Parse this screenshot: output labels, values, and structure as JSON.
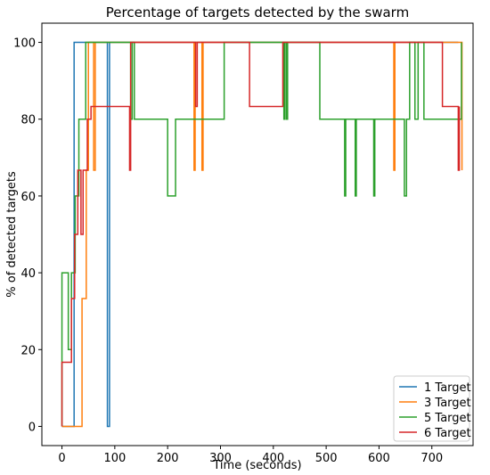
{
  "chart_data": {
    "type": "line",
    "title": "Percentage of targets detected by the swarm",
    "xlabel": "Time (seconds)",
    "ylabel": "% of detected targets",
    "xlim": [
      -38,
      778
    ],
    "ylim": [
      -5,
      105
    ],
    "x_ticks": [
      0,
      100,
      200,
      300,
      400,
      500,
      600,
      700
    ],
    "y_ticks": [
      0,
      20,
      40,
      60,
      80,
      100
    ],
    "grid": false,
    "legend_position": "bottom-right",
    "series": [
      {
        "name": "1 Target",
        "color": "#1f77b4",
        "points": [
          [
            0,
            0
          ],
          [
            23,
            0
          ],
          [
            23,
            100
          ],
          [
            86,
            100
          ],
          [
            86,
            0
          ],
          [
            90,
            0
          ],
          [
            90,
            100
          ],
          [
            750,
            100
          ]
        ]
      },
      {
        "name": "3 Target",
        "color": "#ff7f0e",
        "points": [
          [
            0,
            0
          ],
          [
            38,
            0
          ],
          [
            38,
            33.3
          ],
          [
            46,
            33.3
          ],
          [
            46,
            66.7
          ],
          [
            50,
            66.7
          ],
          [
            50,
            100
          ],
          [
            60,
            100
          ],
          [
            60,
            66.7
          ],
          [
            63,
            66.7
          ],
          [
            63,
            100
          ],
          [
            250,
            100
          ],
          [
            250,
            66.7
          ],
          [
            252,
            66.7
          ],
          [
            252,
            100
          ],
          [
            265,
            100
          ],
          [
            265,
            66.7
          ],
          [
            267,
            66.7
          ],
          [
            267,
            100
          ],
          [
            628,
            100
          ],
          [
            628,
            66.7
          ],
          [
            630,
            66.7
          ],
          [
            630,
            100
          ],
          [
            757,
            100
          ],
          [
            757,
            66.7
          ]
        ]
      },
      {
        "name": "5 Target",
        "color": "#2ca02c",
        "points": [
          [
            0,
            0
          ],
          [
            0,
            40
          ],
          [
            12,
            40
          ],
          [
            12,
            20
          ],
          [
            18,
            20
          ],
          [
            18,
            40
          ],
          [
            25,
            40
          ],
          [
            25,
            60
          ],
          [
            32,
            60
          ],
          [
            32,
            80
          ],
          [
            45,
            80
          ],
          [
            45,
            100
          ],
          [
            130,
            100
          ],
          [
            130,
            80
          ],
          [
            133,
            80
          ],
          [
            133,
            100
          ],
          [
            137,
            100
          ],
          [
            137,
            80
          ],
          [
            200,
            80
          ],
          [
            200,
            60
          ],
          [
            215,
            60
          ],
          [
            215,
            80
          ],
          [
            307,
            80
          ],
          [
            307,
            100
          ],
          [
            420,
            100
          ],
          [
            420,
            80
          ],
          [
            422,
            80
          ],
          [
            422,
            100
          ],
          [
            425,
            100
          ],
          [
            425,
            80
          ],
          [
            427,
            80
          ],
          [
            427,
            100
          ],
          [
            488,
            100
          ],
          [
            488,
            80
          ],
          [
            535,
            80
          ],
          [
            535,
            60
          ],
          [
            537,
            60
          ],
          [
            537,
            80
          ],
          [
            555,
            80
          ],
          [
            555,
            60
          ],
          [
            557,
            60
          ],
          [
            557,
            80
          ],
          [
            590,
            80
          ],
          [
            590,
            60
          ],
          [
            592,
            60
          ],
          [
            592,
            80
          ],
          [
            648,
            80
          ],
          [
            648,
            60
          ],
          [
            652,
            60
          ],
          [
            652,
            80
          ],
          [
            658,
            80
          ],
          [
            658,
            100
          ],
          [
            668,
            100
          ],
          [
            668,
            80
          ],
          [
            674,
            80
          ],
          [
            674,
            100
          ],
          [
            685,
            100
          ],
          [
            685,
            80
          ],
          [
            756,
            80
          ],
          [
            756,
            100
          ]
        ]
      },
      {
        "name": "6 Target",
        "color": "#d62728",
        "points": [
          [
            0,
            0
          ],
          [
            0,
            16.7
          ],
          [
            18,
            16.7
          ],
          [
            18,
            33.3
          ],
          [
            24,
            33.3
          ],
          [
            24,
            50
          ],
          [
            30,
            50
          ],
          [
            30,
            66.7
          ],
          [
            36,
            66.7
          ],
          [
            36,
            50
          ],
          [
            40,
            50
          ],
          [
            40,
            66.7
          ],
          [
            48,
            66.7
          ],
          [
            48,
            80
          ],
          [
            55,
            80
          ],
          [
            55,
            83.3
          ],
          [
            128,
            83.3
          ],
          [
            128,
            66.7
          ],
          [
            130,
            66.7
          ],
          [
            130,
            100
          ],
          [
            253,
            100
          ],
          [
            253,
            83.3
          ],
          [
            256,
            83.3
          ],
          [
            256,
            100
          ],
          [
            355,
            100
          ],
          [
            355,
            83.3
          ],
          [
            418,
            83.3
          ],
          [
            418,
            100
          ],
          [
            720,
            100
          ],
          [
            720,
            83.3
          ],
          [
            750,
            83.3
          ],
          [
            750,
            66.7
          ],
          [
            752,
            66.7
          ],
          [
            752,
            83.3
          ]
        ]
      }
    ]
  }
}
